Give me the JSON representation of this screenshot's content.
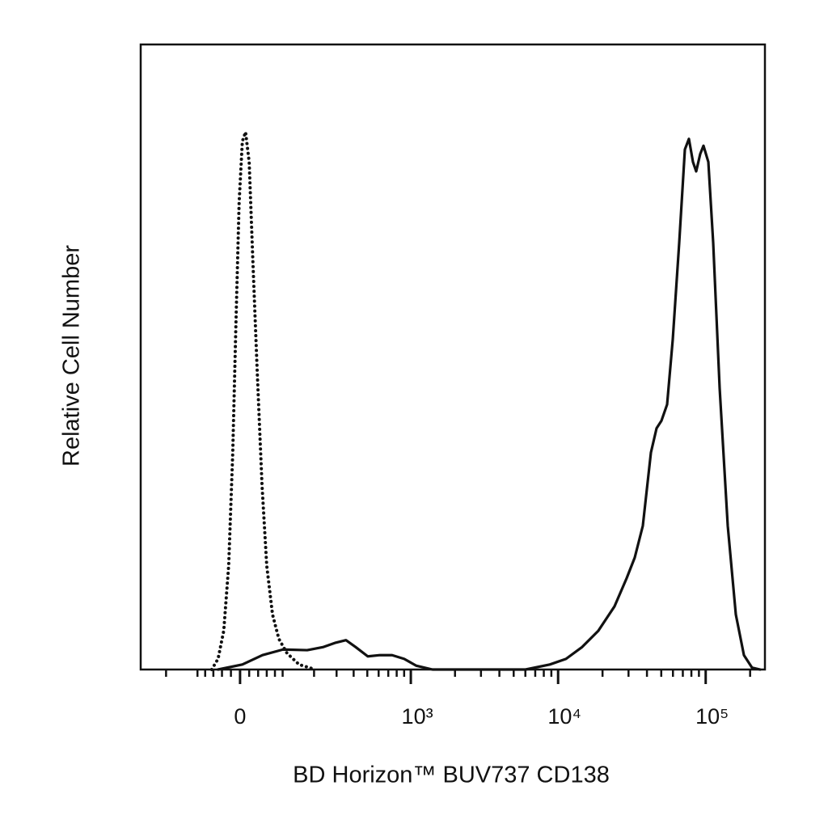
{
  "chart_data": {
    "type": "line",
    "xlabel": "BD Horizon™ BUV737 CD138",
    "ylabel": "Relative Cell Number",
    "xscale": "biexponential",
    "xlim": [
      -315,
      252000
    ],
    "ylim": [
      0,
      100
    ],
    "xticks": [
      0,
      {
        "value": 1000,
        "label": "10³"
      },
      {
        "value": 10000,
        "label": "10⁴"
      },
      {
        "value": 100000,
        "label": "10⁵"
      }
    ],
    "xminorticks": [
      -200,
      -100,
      -80,
      -60,
      -40,
      -20,
      20,
      40,
      60,
      80,
      100,
      200,
      300,
      400,
      500,
      600,
      700,
      800,
      900,
      2000,
      3000,
      4000,
      5000,
      6000,
      7000,
      8000,
      9000,
      20000,
      30000,
      40000,
      50000,
      60000,
      70000,
      80000,
      90000,
      200000
    ],
    "series": [
      {
        "color": "#111111",
        "line_style": "dotted",
        "x": [
          -64,
          -49,
          -36,
          -25,
          -16,
          -9,
          -2,
          5,
          12,
          20,
          28,
          38,
          49,
          60,
          74,
          90,
          112,
          148,
          205
        ],
        "values": [
          0,
          1.7,
          6.2,
          16.6,
          34.7,
          55.4,
          74.8,
          84.5,
          86.0,
          81.2,
          65.7,
          47.6,
          29.4,
          16.6,
          8.8,
          4.9,
          2.6,
          0.8,
          0
        ]
      },
      {
        "color": "#111111",
        "line_style": "solid",
        "x": [
          -49,
          5,
          50,
          101,
          175,
          238,
          296,
          352,
          413,
          504,
          613,
          744,
          901,
          1091,
          1406,
          6016,
          8785,
          11306,
          14553,
          18732,
          24108,
          29134,
          33054,
          37506,
          42546,
          46480,
          50134,
          54768,
          59822,
          66178,
          72282,
          76986,
          81998,
          86240,
          91868,
          96628,
          104230,
          112420,
          124348,
          141064,
          160048,
          181566,
          205940,
          233660
        ],
        "values": [
          0,
          0.8,
          2.3,
          3.2,
          3.1,
          3.6,
          4.3,
          4.7,
          3.6,
          2.1,
          2.3,
          2.3,
          1.7,
          0.6,
          0,
          0,
          0.8,
          1.7,
          3.6,
          6.2,
          10.1,
          14.6,
          17.9,
          23.0,
          34.7,
          38.6,
          39.8,
          42.4,
          52.8,
          68.3,
          83.2,
          84.9,
          81.2,
          79.7,
          82.5,
          83.8,
          81.2,
          68.3,
          45.0,
          23.0,
          8.8,
          2.3,
          0.3,
          0
        ]
      }
    ]
  }
}
